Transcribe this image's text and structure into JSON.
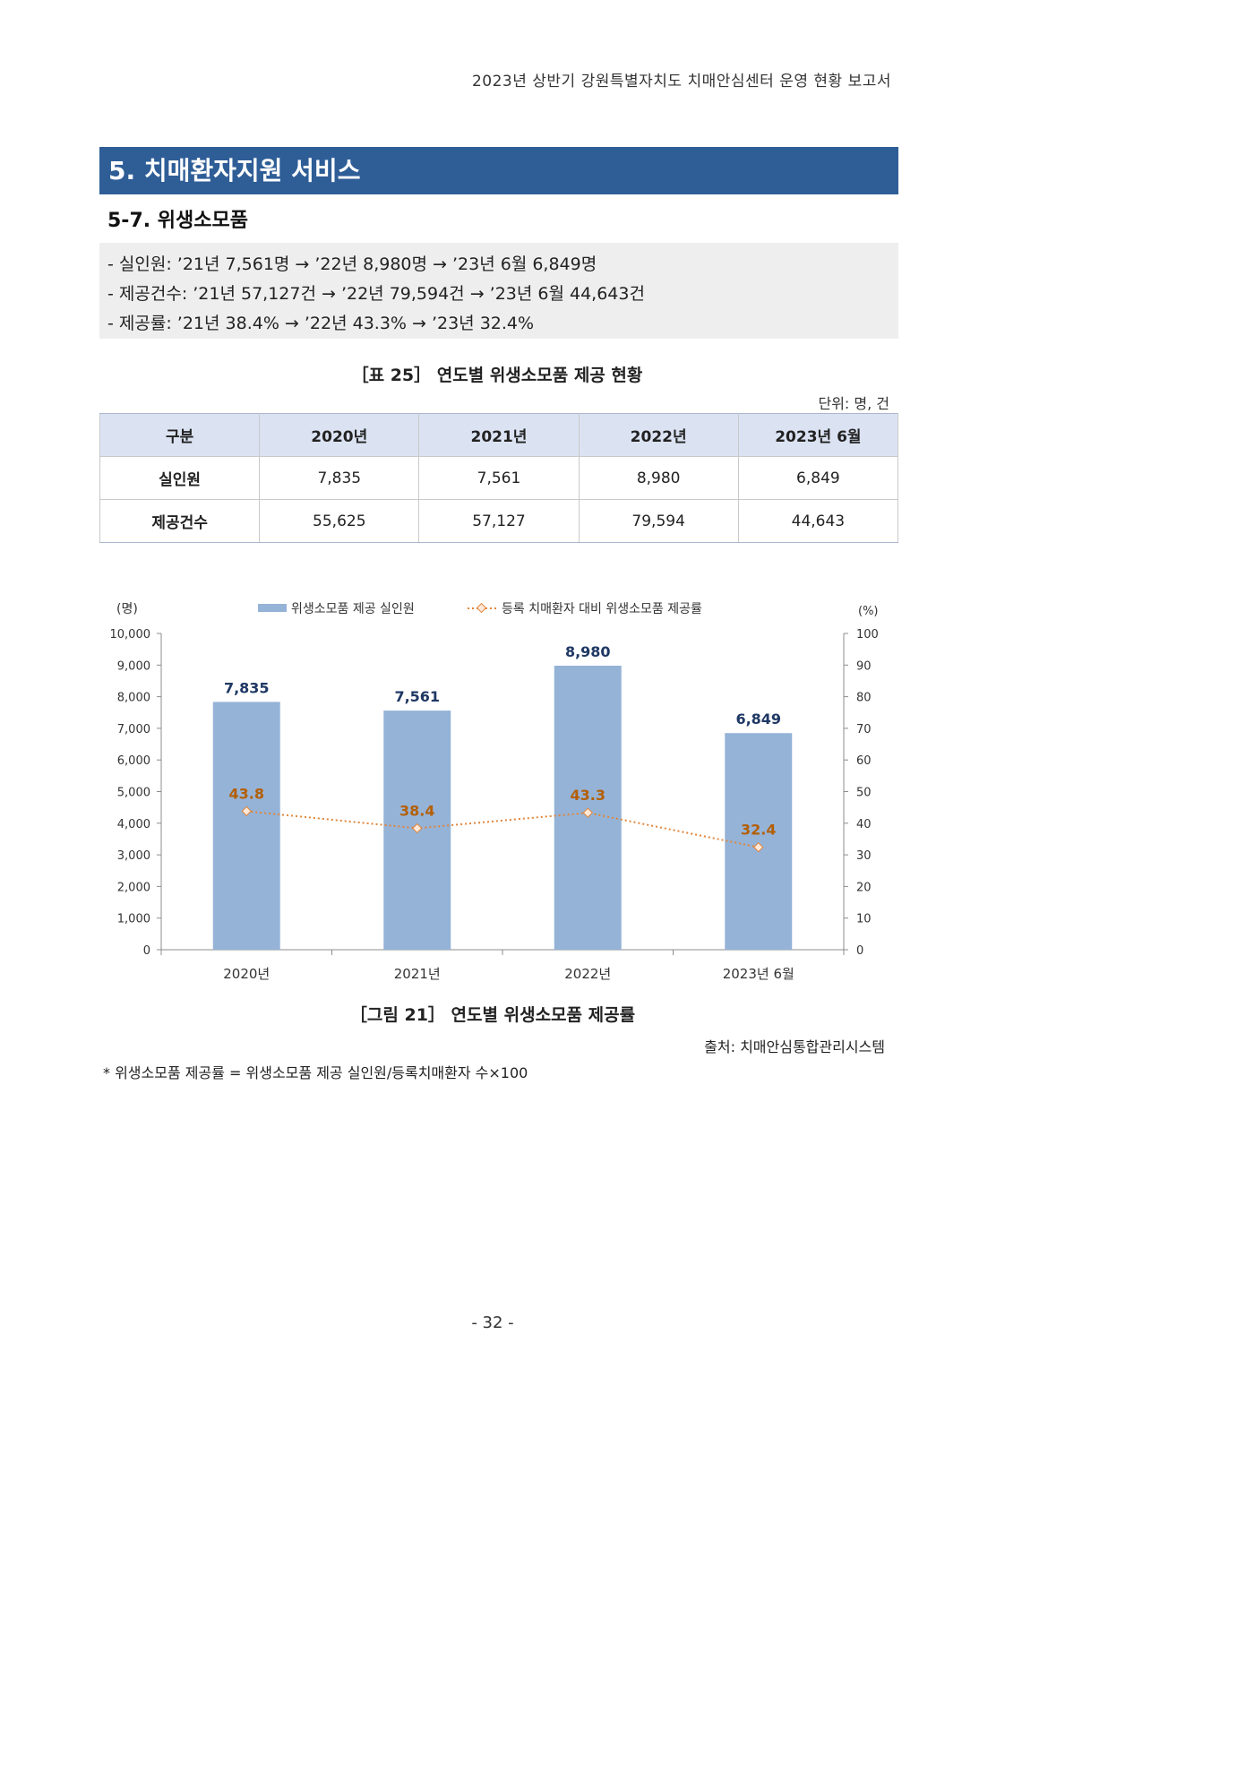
{
  "header": {
    "title": "2023년 상반기 강원특별자치도 치매안심센터 운영 현황 보고서"
  },
  "section": {
    "title": "5. 치매환자지원 서비스"
  },
  "subsection": {
    "title": "5-7. 위생소모품"
  },
  "summary": {
    "lines": [
      "- 실인원: ’21년 7,561명 → ’22년 8,980명 → ’23년 6월 6,849명",
      "- 제공건수: ’21년 57,127건 → ’22년 79,594건 → ’23년 6월 44,643건",
      "- 제공률:  ’21년 38.4% → ’22년 43.3% → ’23년 32.4%"
    ]
  },
  "table": {
    "caption": "［표 25］ 연도별 위생소모품 제공 현황",
    "unit": "단위: 명, 건",
    "headers": [
      "구분",
      "2020년",
      "2021년",
      "2022년",
      "2023년 6월"
    ],
    "rows": [
      {
        "label": "실인원",
        "values": [
          "7,835",
          "7,561",
          "8,980",
          "6,849"
        ]
      },
      {
        "label": "제공건수",
        "values": [
          "55,625",
          "57,127",
          "79,594",
          "44,643"
        ]
      }
    ]
  },
  "chart_data": {
    "type": "bar",
    "categories": [
      "2020년",
      "2021년",
      "2022년",
      "2023년 6월"
    ],
    "series": [
      {
        "name": "위생소모품 제공 실인원",
        "type": "bar",
        "axis": "left",
        "values": [
          7835,
          7561,
          8980,
          6849
        ],
        "labels": [
          "7,835",
          "7,561",
          "8,980",
          "6,849"
        ],
        "color": "#95b3d7"
      },
      {
        "name": "등록 치매환자 대비 위생소모품 제공률",
        "type": "line",
        "axis": "right",
        "values": [
          43.8,
          38.4,
          43.3,
          32.4
        ],
        "labels": [
          "43.8",
          "38.4",
          "43.3",
          "32.4"
        ],
        "color": "#e0853a"
      }
    ],
    "y_left": {
      "unit_label": "(명)",
      "range": [
        0,
        10000
      ],
      "ticks": [
        "0",
        "1,000",
        "2,000",
        "3,000",
        "4,000",
        "5,000",
        "6,000",
        "7,000",
        "8,000",
        "9,000",
        "10,000"
      ]
    },
    "y_right": {
      "unit_label": "(%)",
      "range": [
        0,
        100
      ],
      "ticks": [
        "0",
        "10",
        "20",
        "30",
        "40",
        "50",
        "60",
        "70",
        "80",
        "90",
        "100"
      ]
    },
    "legend_position": "top",
    "grid": false,
    "bar_label_color": "#1f3864",
    "line_label_color": "#b45f06"
  },
  "figure": {
    "caption": "［그림 21］ 연도별 위생소모품 제공률",
    "source": "출처: 치매안심통합관리시스템"
  },
  "footnote": "* 위생소모품 제공률 = 위생소모품 제공 실인원/등록치매환자 수×100",
  "page_number": "- 32 -"
}
